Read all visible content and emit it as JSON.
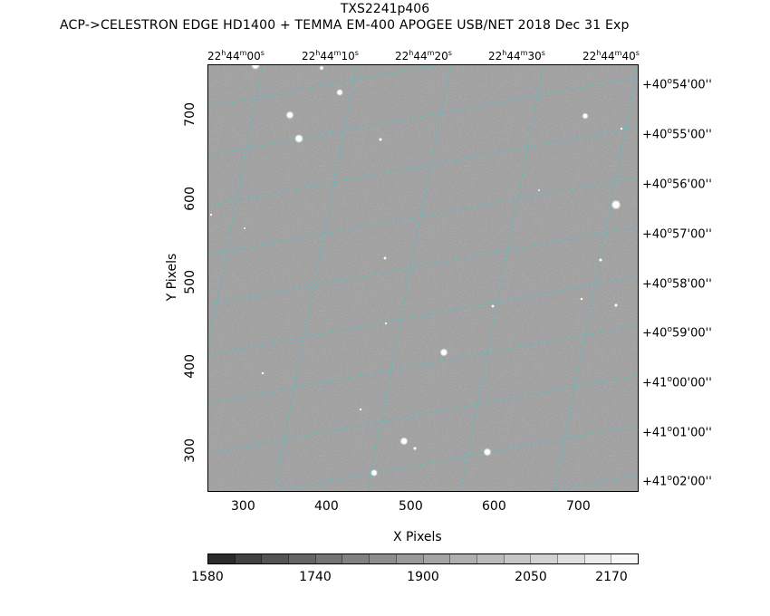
{
  "header": {
    "title": "TXS2241p406",
    "subtitle": "ACP->CELESTRON EDGE HD1400 + TEMMA EM-400 APOGEE USB/NET   2018 Dec 31    Exp"
  },
  "axes": {
    "xlabel": "X Pixels",
    "ylabel": "Y Pixels",
    "x_ticks": [
      "300",
      "400",
      "500",
      "600",
      "700"
    ],
    "y_ticks": [
      "700",
      "600",
      "500",
      "400",
      "300"
    ],
    "ra_ticks": [
      {
        "h": "22",
        "m": "44",
        "s": "00"
      },
      {
        "h": "22",
        "m": "44",
        "s": "10"
      },
      {
        "h": "22",
        "m": "44",
        "s": "20"
      },
      {
        "h": "22",
        "m": "44",
        "s": "30"
      },
      {
        "h": "22",
        "m": "44",
        "s": "40"
      }
    ],
    "dec_ticks": [
      {
        "d": "+40",
        "m": "54",
        "s": "00"
      },
      {
        "d": "+40",
        "m": "55",
        "s": "00"
      },
      {
        "d": "+40",
        "m": "56",
        "s": "00"
      },
      {
        "d": "+40",
        "m": "57",
        "s": "00"
      },
      {
        "d": "+40",
        "m": "58",
        "s": "00"
      },
      {
        "d": "+40",
        "m": "59",
        "s": "00"
      },
      {
        "d": "+41",
        "m": "00",
        "s": "00"
      },
      {
        "d": "+41",
        "m": "01",
        "s": "00"
      },
      {
        "d": "+41",
        "m": "02",
        "s": "00"
      }
    ]
  },
  "colorbar": {
    "labels": [
      "1580",
      "1740",
      "1900",
      "2050",
      "2170"
    ],
    "colors": [
      "#2b2b2b",
      "#424242",
      "#545454",
      "#656565",
      "#747474",
      "#818181",
      "#8d8d8d",
      "#999999",
      "#a4a4a4",
      "#afafaf",
      "#bababa",
      "#c6c6c6",
      "#d2d2d2",
      "#dfdfdf",
      "#ececec",
      "#f8f8f8"
    ]
  },
  "image": {
    "grid_color": "#3fc8d0",
    "background_color": "#868686"
  }
}
